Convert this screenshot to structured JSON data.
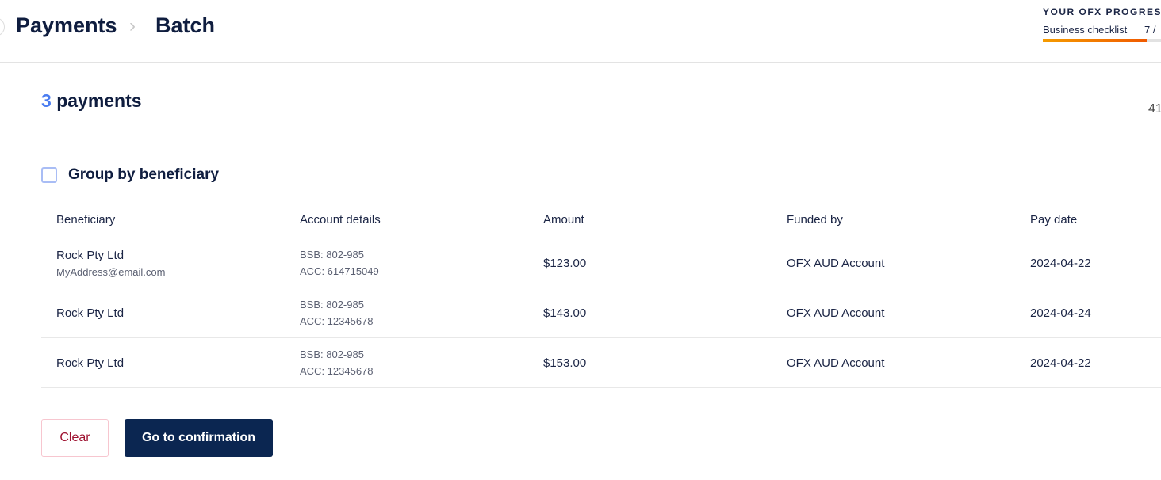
{
  "header": {
    "breadcrumb": [
      "Payments",
      "Batch"
    ]
  },
  "progress": {
    "title": "YOUR OFX PROGRESS",
    "label": "Business checklist",
    "count": "7 /",
    "fill_percent": 82,
    "colors": [
      "#f59b00",
      "#f05a00"
    ]
  },
  "summary": {
    "count": "3",
    "label": "payments",
    "right_value": "41"
  },
  "group": {
    "label": "Group by beneficiary",
    "checked": false
  },
  "table": {
    "columns": [
      "Beneficiary",
      "Account details",
      "Amount",
      "Funded by",
      "Pay date"
    ],
    "rows": [
      {
        "beneficiary": "Rock Pty Ltd",
        "email": "MyAddress@email.com",
        "bsb": "BSB: 802-985",
        "acc": "ACC: 614715049",
        "amount": "$123.00",
        "funded_by": "OFX AUD Account",
        "pay_date": "2024-04-22"
      },
      {
        "beneficiary": "Rock Pty Ltd",
        "bsb": "BSB: 802-985",
        "acc": "ACC: 12345678",
        "amount": "$143.00",
        "funded_by": "OFX AUD Account",
        "pay_date": "2024-04-24"
      },
      {
        "beneficiary": "Rock Pty Ltd",
        "bsb": "BSB: 802-985",
        "acc": "ACC: 12345678",
        "amount": "$153.00",
        "funded_by": "OFX AUD Account",
        "pay_date": "2024-04-22"
      }
    ]
  },
  "actions": {
    "clear": "Clear",
    "confirm": "Go to confirmation"
  },
  "colors": {
    "accent": "#4a7cf0",
    "primary_button": "#0b2651",
    "danger_text": "#9e1230"
  }
}
